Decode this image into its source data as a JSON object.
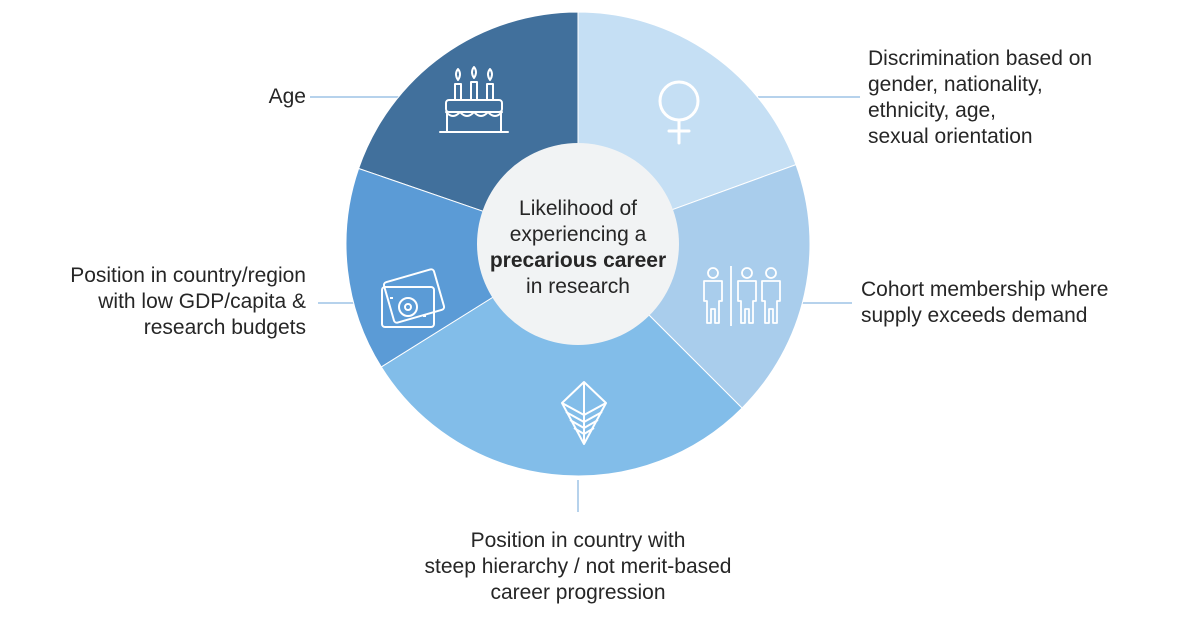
{
  "colors": {
    "age": "#41709c",
    "discrimination": "#c5dff4",
    "cohort": "#a9cdec",
    "hierarchy": "#82bde9",
    "gdp": "#5b9bd6",
    "hub": "#f1f3f4",
    "connector": "#9dc3e6",
    "icon_stroke": "#ffffff"
  },
  "hub": {
    "line1": "Likelihood of",
    "line2": "experiencing a",
    "line3_bold": "precarious career",
    "line4": "in research"
  },
  "segments": [
    {
      "key": "age",
      "icon": "birthday-cake-icon",
      "label_lines": [
        "Age"
      ]
    },
    {
      "key": "discrimination",
      "icon": "female-symbol-icon",
      "label_lines": [
        "Discrimination based on",
        "gender, nationality,",
        "ethnicity, age,",
        "sexual orientation"
      ]
    },
    {
      "key": "cohort",
      "icon": "people-group-icon",
      "label_lines": [
        "Cohort membership where",
        "supply exceeds demand"
      ]
    },
    {
      "key": "hierarchy",
      "icon": "pyramid-icon",
      "label_lines": [
        "Position in country with",
        "steep hierarchy / not merit-based",
        "career progression"
      ]
    },
    {
      "key": "gdp",
      "icon": "money-bills-icon",
      "label_lines": [
        "Position in country/region",
        "with low GDP/capita &",
        "research budgets"
      ]
    }
  ]
}
